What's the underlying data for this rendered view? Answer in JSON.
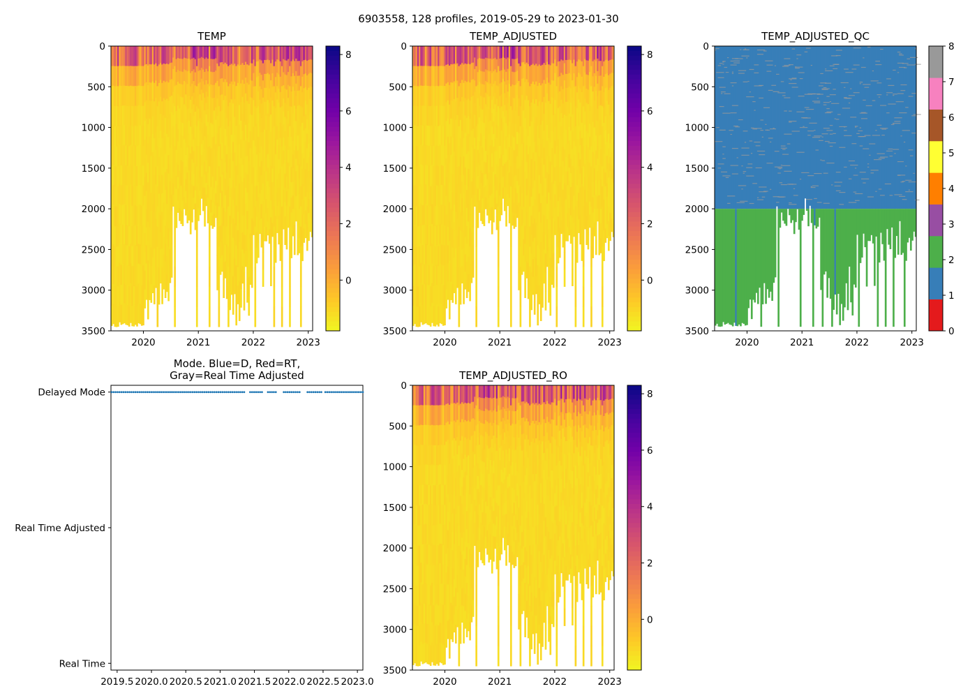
{
  "suptitle": "6903558, 128 profiles, 2019-05-29 to 2023-01-30",
  "colors": {
    "plasma": [
      "#0d0887",
      "#46039f",
      "#7201a8",
      "#9c179e",
      "#bd3786",
      "#d8576b",
      "#ed7953",
      "#fb9f3a",
      "#fdca26",
      "#f0f921"
    ],
    "qc": [
      "#e41a1c",
      "#377eb8",
      "#4daf4a",
      "#984ea3",
      "#ff7f00",
      "#ffff33",
      "#a65628",
      "#f781bf",
      "#999999"
    ],
    "mode_point": "#1f77b4"
  },
  "chart_data": [
    {
      "id": "temp",
      "type": "heatmap",
      "title": "TEMP",
      "xlabel": "",
      "ylabel": "",
      "xlim": [
        2019.41,
        2023.08
      ],
      "ylim": [
        3500,
        0
      ],
      "xticks": [
        "2020",
        "2021",
        "2022",
        "2023"
      ],
      "xtick_values": [
        2020,
        2021,
        2022,
        2023
      ],
      "yticks": [
        "0",
        "500",
        "1000",
        "1500",
        "2000",
        "2500",
        "3000",
        "3500"
      ],
      "ytick_values": [
        0,
        500,
        1000,
        1500,
        2000,
        2500,
        3000,
        3500
      ],
      "colorbar": {
        "ticks": [
          "0",
          "2",
          "4",
          "6",
          "8"
        ],
        "tick_values": [
          0,
          2,
          4,
          6,
          8
        ],
        "range": [
          -1.8,
          8.3
        ],
        "colormap": "plasma_r"
      },
      "profiles": 128,
      "date_range": [
        "2019-05-29",
        "2023-01-30"
      ],
      "value_description": "Surface 1-8 degC, deep ~-0.8 to -1.2 degC"
    },
    {
      "id": "temp_adjusted",
      "type": "heatmap",
      "title": "TEMP_ADJUSTED",
      "xlim": [
        2019.41,
        2023.08
      ],
      "ylim": [
        3500,
        0
      ],
      "xticks": [
        "2020",
        "2021",
        "2022",
        "2023"
      ],
      "xtick_values": [
        2020,
        2021,
        2022,
        2023
      ],
      "yticks": [
        "0",
        "500",
        "1000",
        "1500",
        "2000",
        "2500",
        "3000",
        "3500"
      ],
      "ytick_values": [
        0,
        500,
        1000,
        1500,
        2000,
        2500,
        3000,
        3500
      ],
      "colorbar": {
        "ticks": [
          "0",
          "2",
          "4",
          "6",
          "8"
        ],
        "tick_values": [
          0,
          2,
          4,
          6,
          8
        ],
        "range": [
          -1.8,
          8.3
        ],
        "colormap": "plasma_r"
      }
    },
    {
      "id": "temp_adjusted_qc",
      "type": "heatmap",
      "title": "TEMP_ADJUSTED_QC",
      "xlim": [
        2019.41,
        2023.08
      ],
      "ylim": [
        3500,
        0
      ],
      "xticks": [
        "2020",
        "2021",
        "2022",
        "2023"
      ],
      "xtick_values": [
        2020,
        2021,
        2022,
        2023
      ],
      "yticks": [
        "0",
        "500",
        "1000",
        "1500",
        "2000",
        "2500",
        "3000",
        "3500"
      ],
      "ytick_values": [
        0,
        500,
        1000,
        1500,
        2000,
        2500,
        3000,
        3500
      ],
      "qc_boundary_depth": 2000,
      "colorbar": {
        "ticks": [
          "0",
          "1",
          "2",
          "3",
          "4",
          "5",
          "6",
          "7",
          "8"
        ],
        "tick_values": [
          0,
          1,
          2,
          3,
          4,
          5,
          6,
          7,
          8
        ],
        "range": [
          0,
          8
        ],
        "colormap": "qc_discrete"
      }
    },
    {
      "id": "mode",
      "type": "scatter",
      "title_line1": "Mode. Blue=D, Red=RT,",
      "title_line2": "Gray=Real Time Adjusted",
      "xlim": [
        2019.41,
        2023.08
      ],
      "xticks": [
        "2019.5",
        "2020.0",
        "2020.5",
        "2021.0",
        "2021.5",
        "2022.0",
        "2022.5",
        "2023.0"
      ],
      "xtick_values": [
        2019.5,
        2020.0,
        2020.5,
        2021.0,
        2021.5,
        2022.0,
        2022.5,
        2023.0
      ],
      "ycategories": [
        "Real Time",
        "Real Time Adjusted",
        "Delayed Mode"
      ],
      "ycategory_values": [
        0,
        1,
        2
      ],
      "points_mode": 2,
      "gaps": [
        [
          2021.36,
          2021.43
        ],
        [
          2021.62,
          2021.67
        ],
        [
          2021.83,
          2021.92
        ],
        [
          2022.18,
          2022.25
        ],
        [
          2022.48,
          2022.53
        ]
      ]
    },
    {
      "id": "temp_adjusted_ro",
      "type": "heatmap",
      "title": "TEMP_ADJUSTED_RO",
      "xlim": [
        2019.41,
        2023.08
      ],
      "ylim": [
        3500,
        0
      ],
      "xticks": [
        "2020",
        "2021",
        "2022",
        "2023"
      ],
      "xtick_values": [
        2020,
        2021,
        2022,
        2023
      ],
      "yticks": [
        "0",
        "500",
        "1000",
        "1500",
        "2000",
        "2500",
        "3000",
        "3500"
      ],
      "ytick_values": [
        0,
        500,
        1000,
        1500,
        2000,
        2500,
        3000,
        3500
      ],
      "colorbar": {
        "ticks": [
          "0",
          "2",
          "4",
          "6",
          "8"
        ],
        "tick_values": [
          0,
          2,
          4,
          6,
          8
        ],
        "range": [
          -1.8,
          8.3
        ],
        "colormap": "plasma_r"
      }
    }
  ]
}
